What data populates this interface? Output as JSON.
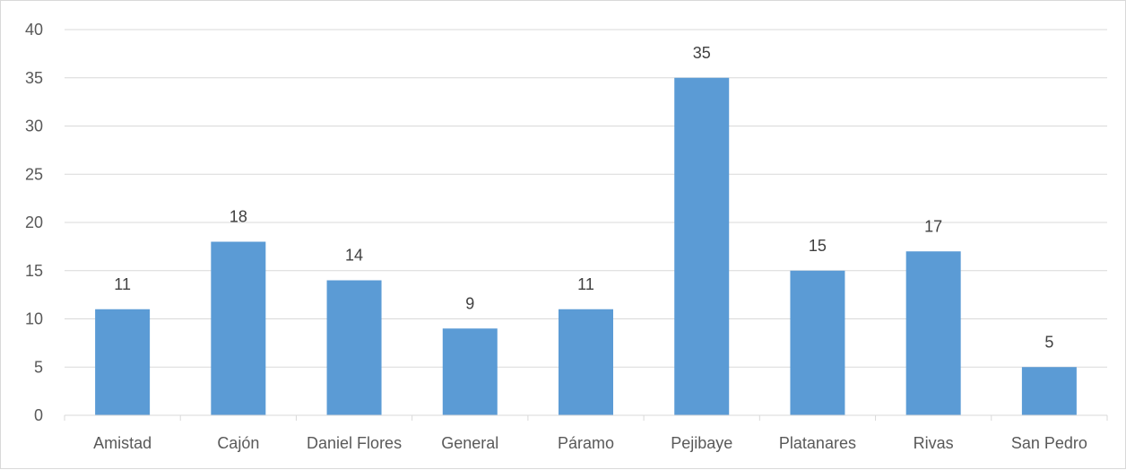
{
  "chart_data": {
    "type": "bar",
    "categories": [
      "Amistad",
      "Cajón",
      "Daniel Flores",
      "General",
      "Páramo",
      "Pejibaye",
      "Platanares",
      "Rivas",
      "San Pedro"
    ],
    "values": [
      11,
      18,
      14,
      9,
      11,
      35,
      15,
      17,
      5
    ],
    "data_labels": [
      "11",
      "18",
      "14",
      "9",
      "11",
      "35",
      "15",
      "17",
      "5"
    ],
    "y_ticks": [
      0,
      5,
      10,
      15,
      20,
      25,
      30,
      35,
      40
    ],
    "ylim": [
      0,
      40
    ],
    "grid": true,
    "bar_color": "#5b9bd5",
    "gridline_color": "#d9d9d9"
  }
}
